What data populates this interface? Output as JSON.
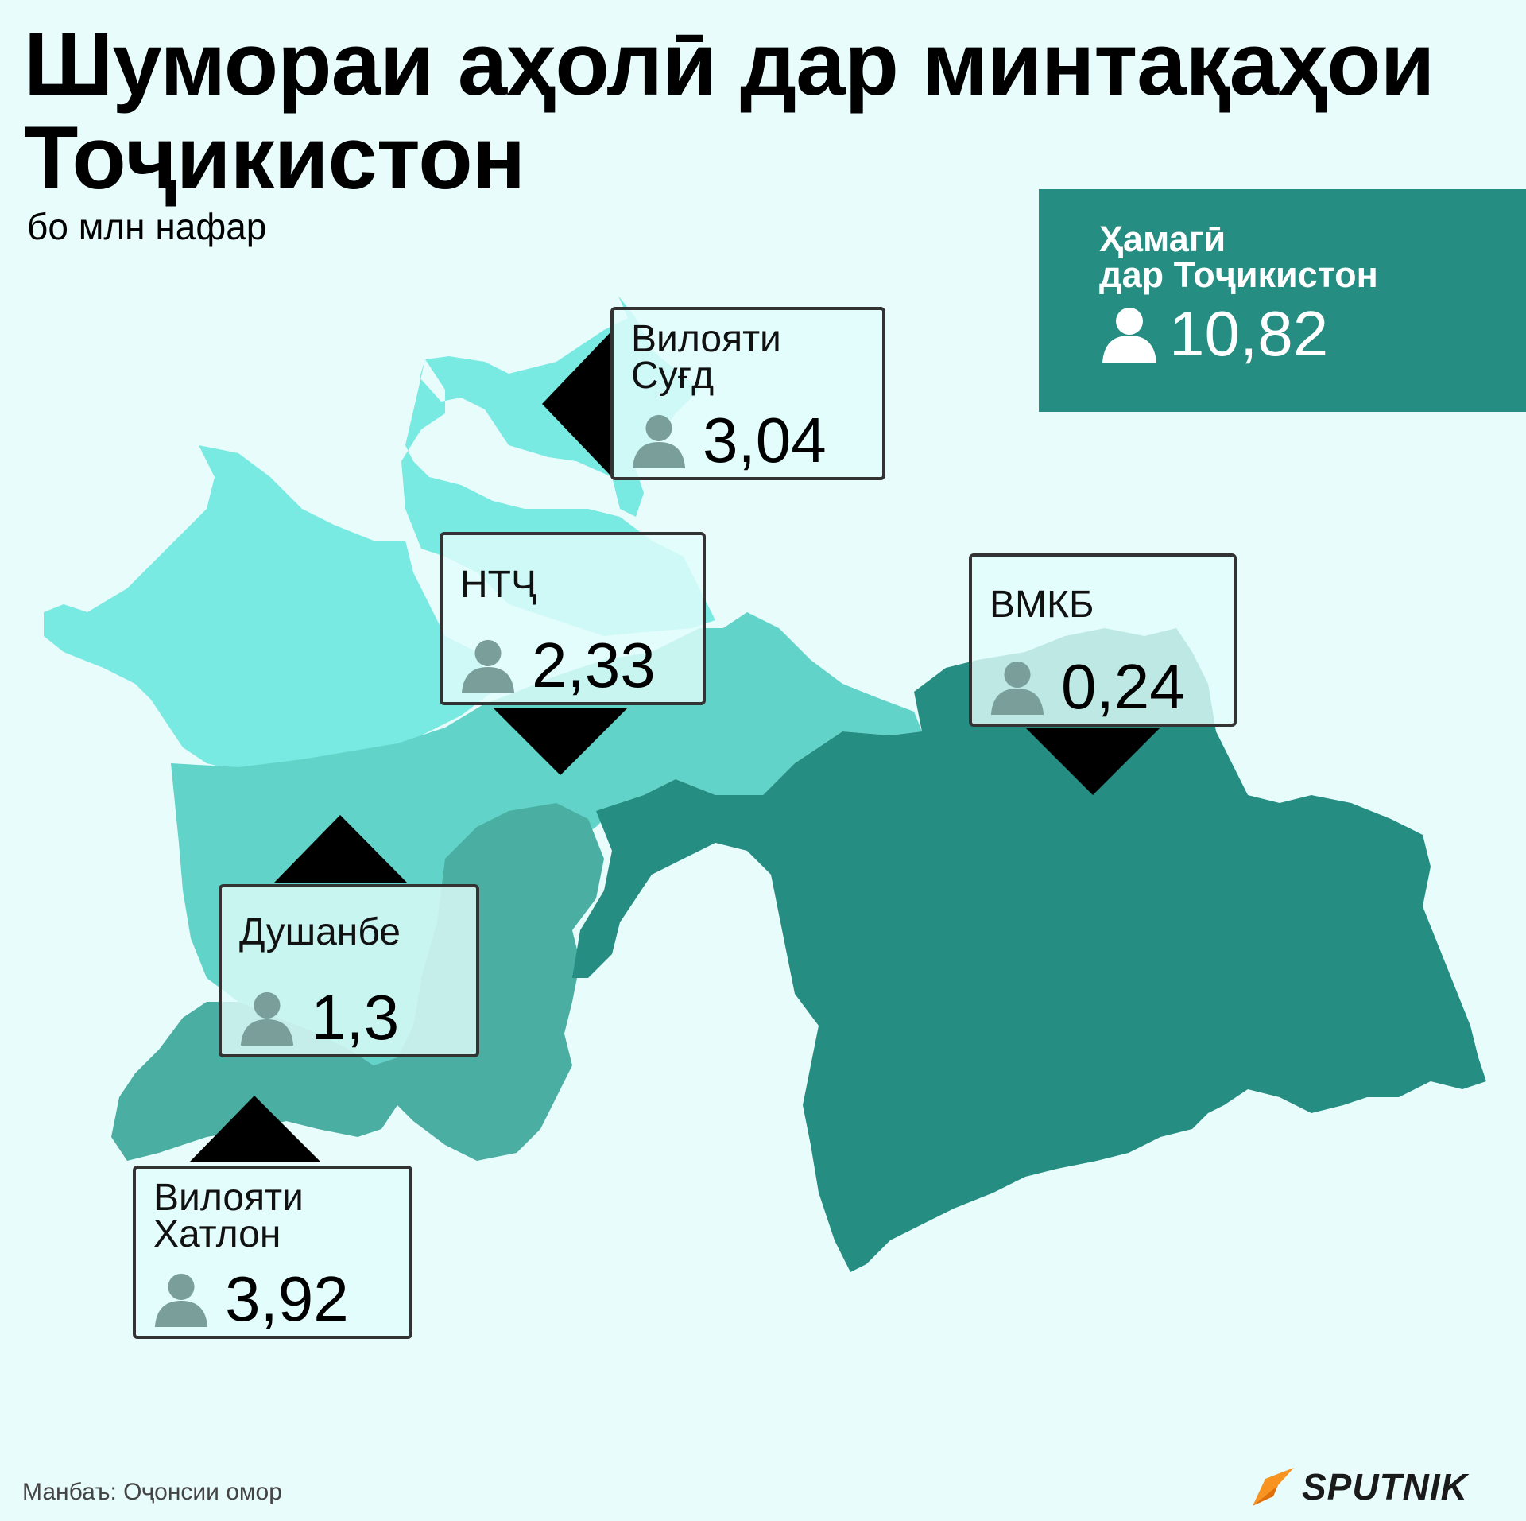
{
  "title": "Шумораи аҳолӣ дар минтақаҳои Тоҷикистон",
  "subtitle": "бо млн нафар",
  "total": {
    "label_line1": "Ҳамагӣ",
    "label_line2": "дар Тоҷикистон",
    "value": "10,82"
  },
  "regions": [
    {
      "id": "sughd",
      "name_line1": "Вилояти",
      "name_line2": "Суғд",
      "value": "3,04",
      "color": "#78eae2"
    },
    {
      "id": "ntch",
      "name_line1": "НТҶ",
      "name_line2": "",
      "value": "2,33",
      "color": "#62d3c8"
    },
    {
      "id": "vmkb",
      "name_line1": "ВМКБ",
      "name_line2": "",
      "value": "0,24",
      "color": "#258d81"
    },
    {
      "id": "dushanbe",
      "name_line1": "Душанбе",
      "name_line2": "",
      "value": "1,3",
      "color": "#62d3c8"
    },
    {
      "id": "khatlon",
      "name_line1": "Вилояти",
      "name_line2": "Хатлон",
      "value": "3,92",
      "color": "#4aaea2"
    }
  ],
  "source": "Манбаъ: Оҷонсии омор",
  "logo_text": "SPUTNIK",
  "colors": {
    "background": "#e8fcfc",
    "total_box": "#258d81",
    "logo_accent": "#f7931e"
  },
  "icons": {
    "person": "person-icon",
    "logo": "sputnik-logo-icon"
  }
}
